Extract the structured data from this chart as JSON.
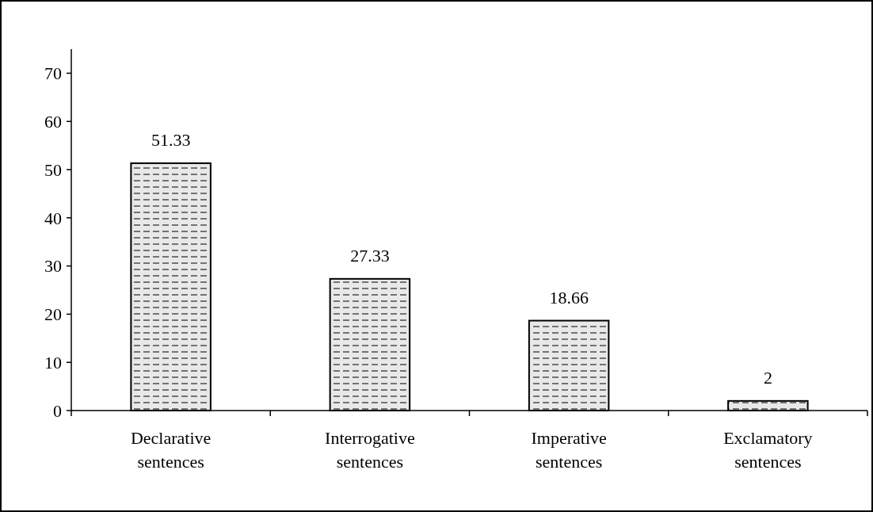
{
  "chart_data": {
    "type": "bar",
    "categories": [
      "Declarative sentences",
      "Interrogative sentences",
      "Imperative sentences",
      "Exclamatory sentences"
    ],
    "values": [
      51.33,
      27.33,
      18.66,
      2
    ],
    "color": "#e8e8e8",
    "ylim": [
      0,
      75
    ],
    "yticks": [
      0,
      10,
      20,
      30,
      40,
      50,
      60,
      70
    ],
    "data_labels": true
  }
}
